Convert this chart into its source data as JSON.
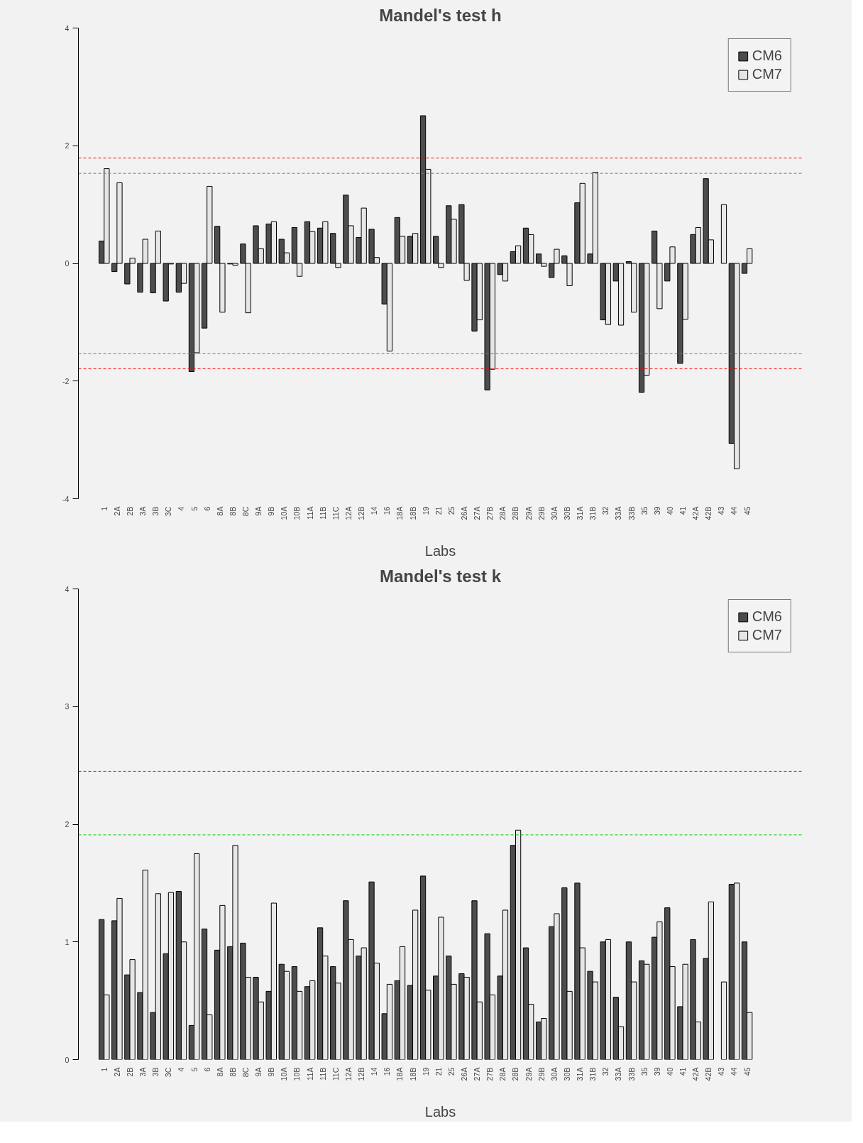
{
  "chart_data": [
    {
      "type": "bar",
      "title": "Mandel's test h",
      "xlabel": "Labs",
      "categories": [
        "1",
        "2A",
        "2B",
        "3A",
        "3B",
        "3C",
        "4",
        "5",
        "6",
        "8A",
        "8B",
        "8C",
        "9A",
        "9B",
        "10A",
        "10B",
        "11A",
        "11B",
        "11C",
        "12A",
        "12B",
        "14",
        "16",
        "18A",
        "18B",
        "19",
        "21",
        "25",
        "26A",
        "27A",
        "27B",
        "28A",
        "28B",
        "29A",
        "29B",
        "30A",
        "30B",
        "31A",
        "31B",
        "32",
        "33A",
        "33B",
        "35",
        "39",
        "40",
        "41",
        "42A",
        "42B",
        "43",
        "44",
        "45"
      ],
      "series": [
        {
          "name": "CM6",
          "color": "#4d4d4d",
          "values": [
            0.38,
            -0.14,
            -0.35,
            -0.49,
            -0.5,
            -0.64,
            -0.49,
            -1.84,
            -1.1,
            0.63,
            -0.01,
            0.33,
            0.64,
            0.67,
            0.41,
            0.61,
            0.71,
            0.6,
            0.51,
            1.16,
            0.44,
            0.58,
            -0.69,
            0.78,
            0.46,
            2.51,
            0.46,
            0.98,
            1.0,
            -1.15,
            -2.15,
            -0.19,
            0.2,
            0.6,
            0.16,
            -0.24,
            0.13,
            1.03,
            0.16,
            -0.96,
            -0.3,
            0.03,
            -2.19,
            0.55,
            -0.3,
            -1.7,
            0.49,
            1.44,
            null,
            -3.06,
            -0.17
          ]
        },
        {
          "name": "CM7",
          "color": "#e6e6e6",
          "values": [
            1.61,
            1.37,
            0.09,
            0.41,
            0.55,
            -0.01,
            -0.34,
            -1.52,
            1.31,
            -0.83,
            -0.03,
            -0.84,
            0.25,
            0.71,
            0.18,
            -0.22,
            0.54,
            0.71,
            -0.07,
            0.64,
            0.94,
            0.1,
            -1.49,
            0.46,
            0.51,
            1.6,
            -0.07,
            0.75,
            -0.29,
            -0.96,
            -1.8,
            -0.3,
            0.3,
            0.49,
            -0.05,
            0.24,
            -0.38,
            1.36,
            1.55,
            -1.04,
            -1.05,
            -0.83,
            -1.9,
            -0.77,
            0.28,
            -0.95,
            0.61,
            0.4,
            1.0,
            -3.49,
            0.25
          ]
        }
      ],
      "ylim": [
        -4,
        4
      ],
      "yticks": [
        -4,
        -2,
        0,
        2,
        4
      ],
      "legend": "top right",
      "ref_lines": [
        {
          "axis": "y",
          "value": 1.79,
          "color": "#ff0000",
          "line_style": "dashed"
        },
        {
          "axis": "y",
          "value": -1.79,
          "color": "#ff0000",
          "line_style": "dashed"
        },
        {
          "axis": "y",
          "value": 1.53,
          "color": "#00cc00",
          "line_style": "dashed"
        },
        {
          "axis": "y",
          "value": -1.53,
          "color": "#00cc00",
          "line_style": "dashed"
        }
      ]
    },
    {
      "type": "bar",
      "title": "Mandel's test k",
      "xlabel": "Labs",
      "categories": [
        "1",
        "2A",
        "2B",
        "3A",
        "3B",
        "3C",
        "4",
        "5",
        "6",
        "8A",
        "8B",
        "8C",
        "9A",
        "9B",
        "10A",
        "10B",
        "11A",
        "11B",
        "11C",
        "12A",
        "12B",
        "14",
        "16",
        "18A",
        "18B",
        "19",
        "21",
        "25",
        "26A",
        "27A",
        "27B",
        "28A",
        "28B",
        "29A",
        "29B",
        "30A",
        "30B",
        "31A",
        "31B",
        "32",
        "33A",
        "33B",
        "35",
        "39",
        "40",
        "41",
        "42A",
        "42B",
        "43",
        "44",
        "45"
      ],
      "series": [
        {
          "name": "CM6",
          "color": "#4d4d4d",
          "values": [
            1.19,
            1.18,
            0.72,
            0.57,
            0.4,
            0.9,
            1.43,
            0.29,
            1.11,
            0.93,
            0.96,
            0.99,
            0.7,
            0.58,
            0.81,
            0.79,
            0.62,
            1.12,
            0.79,
            1.35,
            0.88,
            1.51,
            0.39,
            0.67,
            0.63,
            1.56,
            0.71,
            0.88,
            0.73,
            1.35,
            1.07,
            0.71,
            1.82,
            0.95,
            0.32,
            1.13,
            1.46,
            1.5,
            0.75,
            1.0,
            0.53,
            1.0,
            0.84,
            1.04,
            1.29,
            0.45,
            1.02,
            0.86,
            null,
            1.49,
            1.0
          ]
        },
        {
          "name": "CM7",
          "color": "#e6e6e6",
          "values": [
            0.55,
            1.37,
            0.85,
            1.61,
            1.41,
            1.42,
            1.0,
            1.75,
            0.38,
            1.31,
            1.82,
            0.7,
            0.49,
            1.33,
            0.75,
            0.58,
            0.67,
            0.88,
            0.65,
            1.02,
            0.95,
            0.82,
            0.64,
            0.96,
            1.27,
            0.59,
            1.21,
            0.64,
            0.7,
            0.49,
            0.55,
            1.27,
            1.95,
            0.47,
            0.35,
            1.24,
            0.58,
            0.95,
            0.66,
            1.02,
            0.28,
            0.66,
            0.81,
            1.17,
            0.79,
            0.81,
            0.32,
            1.34,
            0.66,
            1.5,
            0.4
          ]
        }
      ],
      "ylim": [
        0,
        4
      ],
      "yticks": [
        0,
        1,
        2,
        3,
        4
      ],
      "legend": "top right",
      "ref_lines": [
        {
          "axis": "y",
          "value": 2.45,
          "color": "#ff0000",
          "line_style": "dashed"
        },
        {
          "axis": "y",
          "value": 1.91,
          "color": "#00cc00",
          "line_style": "dashed"
        }
      ]
    }
  ]
}
